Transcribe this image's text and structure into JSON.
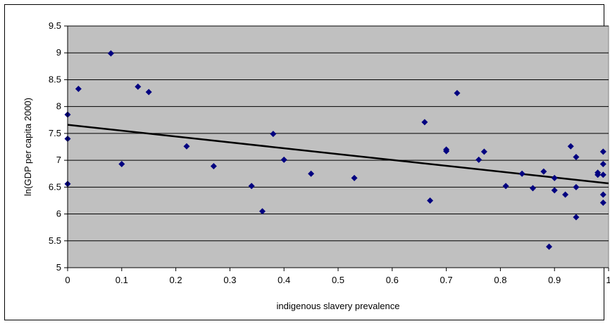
{
  "chart_data": {
    "type": "scatter",
    "title": "",
    "xlabel": "indigenous slavery prevalence",
    "ylabel": "ln(GDP per capita 2000)",
    "xlim": [
      0,
      1
    ],
    "ylim": [
      5,
      9.5
    ],
    "x_ticks": [
      "0",
      "0.1",
      "0.2",
      "0.3",
      "0.4",
      "0.5",
      "0.6",
      "0.7",
      "0.8",
      "0.9",
      "1"
    ],
    "y_ticks": [
      "5",
      "5.5",
      "6",
      "6.5",
      "7",
      "7.5",
      "8",
      "8.5",
      "9",
      "9.5"
    ],
    "grid": "horizontal",
    "plot_background": "#c0c0c0",
    "marker_color": "#000080",
    "trendline": {
      "type": "linear",
      "x": [
        0,
        1
      ],
      "y": [
        7.66,
        6.57
      ],
      "color": "#000000"
    },
    "series": [
      {
        "marker": "diamond",
        "points": [
          [
            0,
            7.85
          ],
          [
            0,
            7.4
          ],
          [
            0,
            6.56
          ],
          [
            0.02,
            8.33
          ],
          [
            0.08,
            8.99
          ],
          [
            0.1,
            6.93
          ],
          [
            0.13,
            8.37
          ],
          [
            0.15,
            8.27
          ],
          [
            0.22,
            7.26
          ],
          [
            0.27,
            6.89
          ],
          [
            0.34,
            6.52
          ],
          [
            0.36,
            6.05
          ],
          [
            0.38,
            7.49
          ],
          [
            0.4,
            7.01
          ],
          [
            0.45,
            6.75
          ],
          [
            0.53,
            6.67
          ],
          [
            0.66,
            7.71
          ],
          [
            0.67,
            6.25
          ],
          [
            0.7,
            7.2
          ],
          [
            0.7,
            7.17
          ],
          [
            0.72,
            8.25
          ],
          [
            0.76,
            7.01
          ],
          [
            0.77,
            7.16
          ],
          [
            0.81,
            6.52
          ],
          [
            0.84,
            6.75
          ],
          [
            0.86,
            6.48
          ],
          [
            0.88,
            6.79
          ],
          [
            0.89,
            5.39
          ],
          [
            0.9,
            6.67
          ],
          [
            0.9,
            6.44
          ],
          [
            0.92,
            6.36
          ],
          [
            0.93,
            7.26
          ],
          [
            0.94,
            7.06
          ],
          [
            0.94,
            6.5
          ],
          [
            0.94,
            5.94
          ],
          [
            0.98,
            6.77
          ],
          [
            0.98,
            6.73
          ],
          [
            0.99,
            7.16
          ],
          [
            0.99,
            6.93
          ],
          [
            0.99,
            6.73
          ],
          [
            0.99,
            6.36
          ],
          [
            0.99,
            6.21
          ]
        ]
      }
    ]
  }
}
